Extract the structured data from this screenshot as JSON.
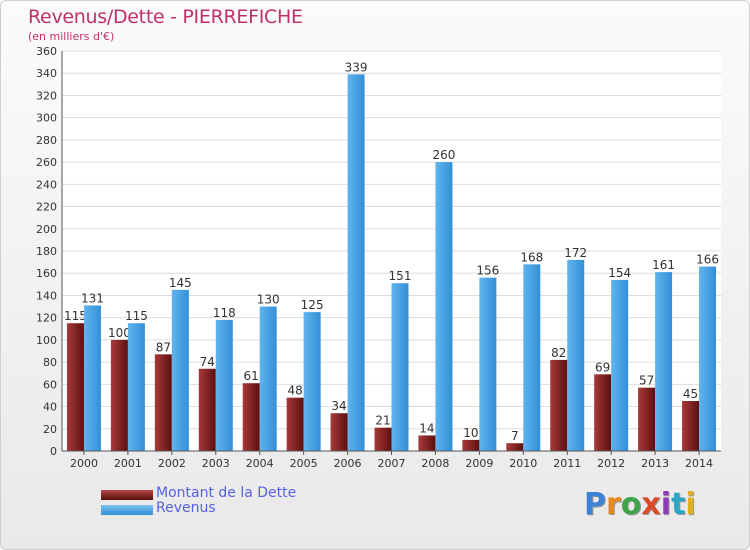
{
  "header": {
    "title": "Revenus/Dette - PIERREFICHE",
    "subtitle": "(en milliers d'€)"
  },
  "legend": {
    "debt_label": "Montant de la Dette",
    "revenue_label": "Revenus"
  },
  "logo": {
    "text": "Proxiti"
  },
  "colors": {
    "title": "#c0306a",
    "debt": "#7a1f1f",
    "revenue": "#3f9fe3",
    "legend_text": "#5563e0"
  },
  "chart_data": {
    "type": "bar",
    "title": "Revenus/Dette - PIERREFICHE",
    "subtitle": "(en milliers d'€)",
    "categories": [
      "2000",
      "2001",
      "2002",
      "2003",
      "2004",
      "2005",
      "2006",
      "2007",
      "2008",
      "2009",
      "2010",
      "2011",
      "2012",
      "2013",
      "2014"
    ],
    "series": [
      {
        "name": "Montant de la Dette",
        "values": [
          115,
          100,
          87,
          74,
          61,
          48,
          34,
          21,
          14,
          10,
          7,
          82,
          69,
          57,
          45
        ]
      },
      {
        "name": "Revenus",
        "values": [
          131,
          115,
          145,
          118,
          130,
          125,
          339,
          151,
          260,
          156,
          168,
          172,
          154,
          161,
          166
        ]
      }
    ],
    "ylim": [
      0,
      360
    ],
    "yticks": [
      0,
      20,
      40,
      60,
      80,
      100,
      120,
      140,
      160,
      180,
      200,
      220,
      240,
      260,
      280,
      300,
      320,
      340,
      360
    ],
    "grid": true,
    "legend_position": "bottom-left"
  }
}
